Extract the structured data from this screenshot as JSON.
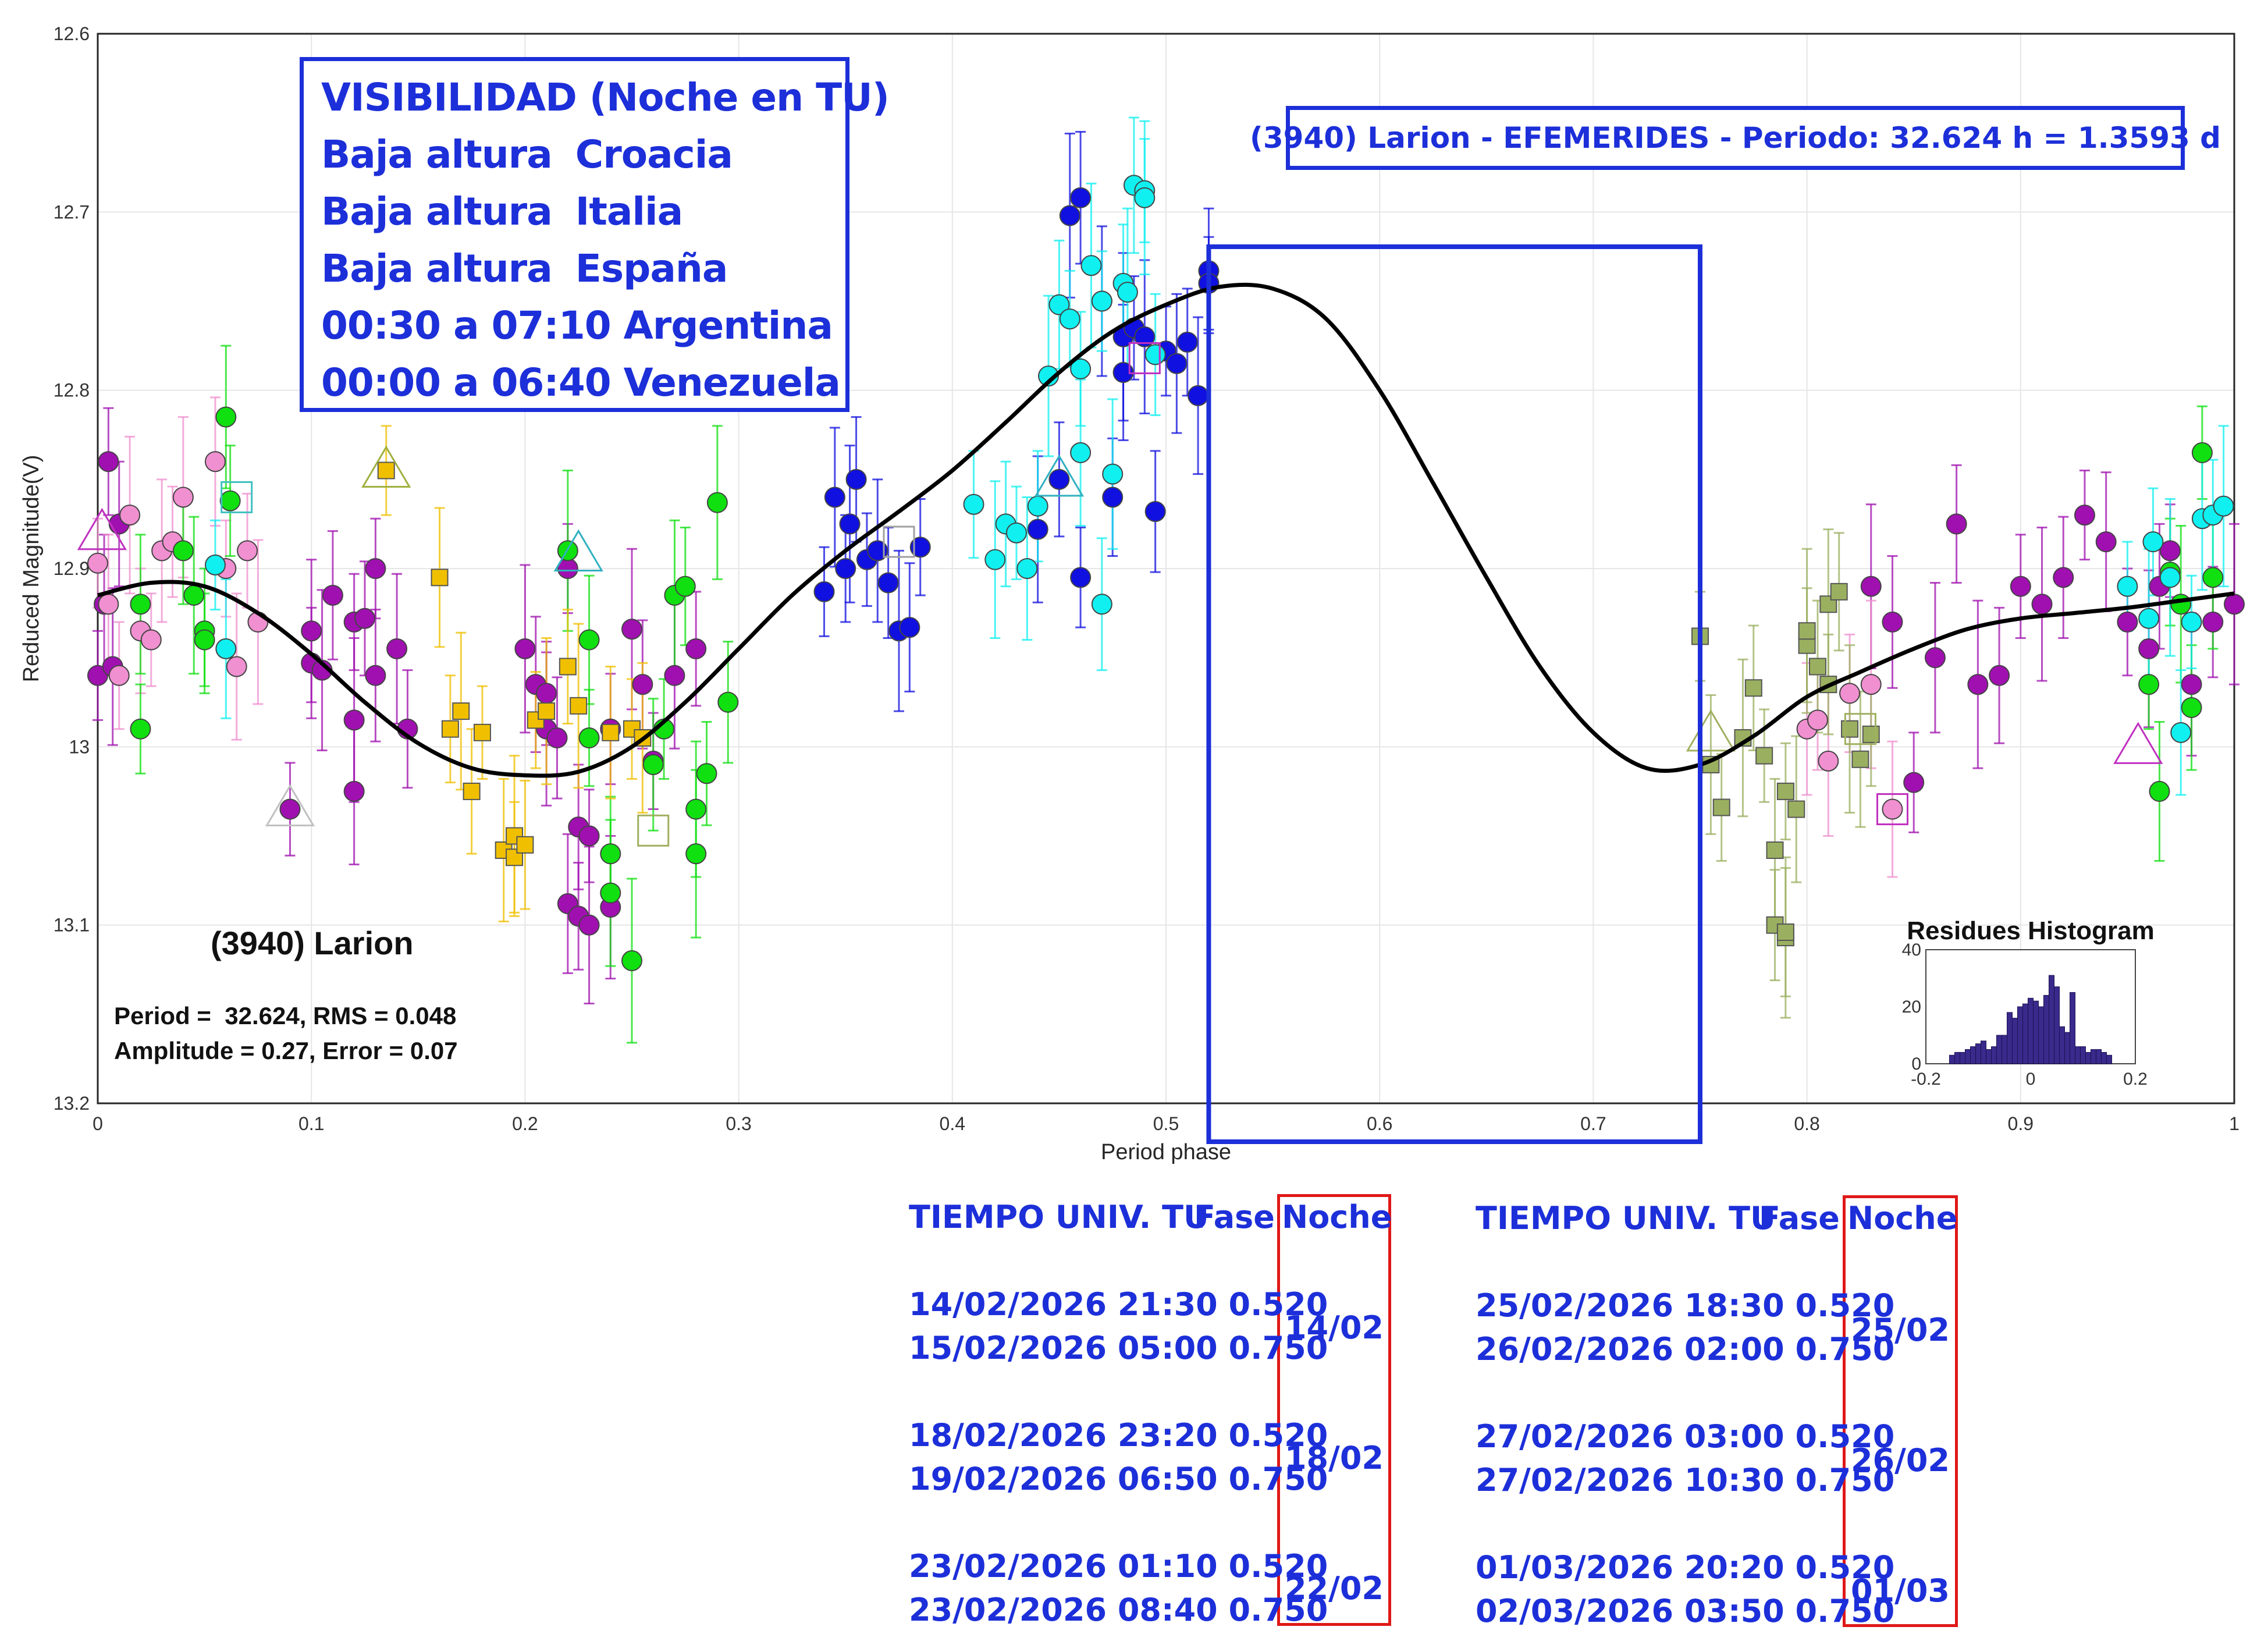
{
  "chart_data": {
    "type": "scatter",
    "xlabel": "Period phase",
    "ylabel": "Reduced Magnitude(V)",
    "xlim": [
      0,
      1
    ],
    "ylim": [
      12.6,
      13.2
    ],
    "y_inverted": true,
    "grid": true,
    "xticks": [
      "0",
      "0.1",
      "0.2",
      "0.3",
      "0.4",
      "0.5",
      "0.6",
      "0.7",
      "0.8",
      "0.9",
      "1"
    ],
    "yticks": [
      "12.6",
      "12.7",
      "12.8",
      "12.9",
      "13",
      "13.1",
      "13.2"
    ],
    "object_label": "(3940) Larion",
    "stats_line1": "Period =  32.624, RMS = 0.048",
    "stats_line2": "Amplitude = 0.27, Error = 0.07",
    "fit_curve": {
      "x": [
        0,
        0.025,
        0.05,
        0.075,
        0.1,
        0.125,
        0.15,
        0.175,
        0.2,
        0.225,
        0.25,
        0.275,
        0.3,
        0.325,
        0.35,
        0.375,
        0.4,
        0.425,
        0.45,
        0.475,
        0.5,
        0.525,
        0.55,
        0.575,
        0.6,
        0.625,
        0.65,
        0.675,
        0.7,
        0.725,
        0.75,
        0.775,
        0.8,
        0.825,
        0.85,
        0.875,
        0.9,
        0.925,
        0.95,
        0.975,
        1
      ],
      "y": [
        12.915,
        12.908,
        12.91,
        12.925,
        12.948,
        12.975,
        12.998,
        13.012,
        13.016,
        13.014,
        13.0,
        12.975,
        12.945,
        12.915,
        12.89,
        12.868,
        12.845,
        12.818,
        12.79,
        12.767,
        12.752,
        12.742,
        12.743,
        12.76,
        12.8,
        12.852,
        12.905,
        12.955,
        12.992,
        13.012,
        13.01,
        12.994,
        12.972,
        12.958,
        12.945,
        12.934,
        12.928,
        12.925,
        12.922,
        12.918,
        12.914
      ]
    },
    "observation_window": {
      "phase_start": 0.52,
      "phase_end": 0.75
    },
    "series": [
      {
        "name": "magenta",
        "color": "#a010b0",
        "marker": "circle",
        "points": [
          [
            0.0,
            12.96
          ],
          [
            0.003,
            12.92
          ],
          [
            0.005,
            12.84
          ],
          [
            0.007,
            12.955
          ],
          [
            0.01,
            12.875
          ],
          [
            0.09,
            13.035
          ],
          [
            0.1,
            12.935
          ],
          [
            0.1,
            12.953
          ],
          [
            0.105,
            12.957
          ],
          [
            0.11,
            12.915
          ],
          [
            0.12,
            12.93
          ],
          [
            0.12,
            13.025
          ],
          [
            0.125,
            12.928
          ],
          [
            0.12,
            12.985
          ],
          [
            0.13,
            12.96
          ],
          [
            0.13,
            12.9
          ],
          [
            0.14,
            12.945
          ],
          [
            0.145,
            12.99
          ],
          [
            0.2,
            12.945
          ],
          [
            0.205,
            12.965
          ],
          [
            0.21,
            12.97
          ],
          [
            0.21,
            12.99
          ],
          [
            0.215,
            12.995
          ],
          [
            0.22,
            12.9
          ],
          [
            0.22,
            13.088
          ],
          [
            0.225,
            13.095
          ],
          [
            0.23,
            13.1
          ],
          [
            0.225,
            13.045
          ],
          [
            0.23,
            13.05
          ],
          [
            0.24,
            13.09
          ],
          [
            0.24,
            12.99
          ],
          [
            0.25,
            12.934
          ],
          [
            0.255,
            12.965
          ],
          [
            0.26,
            13.008
          ],
          [
            0.27,
            12.96
          ],
          [
            0.28,
            12.945
          ],
          [
            0.83,
            12.91
          ],
          [
            0.84,
            12.93
          ],
          [
            0.85,
            13.02
          ],
          [
            0.86,
            12.95
          ],
          [
            0.87,
            12.875
          ],
          [
            0.88,
            12.965
          ],
          [
            0.89,
            12.96
          ],
          [
            0.9,
            12.91
          ],
          [
            0.91,
            12.92
          ],
          [
            0.92,
            12.905
          ],
          [
            0.93,
            12.87
          ],
          [
            0.94,
            12.885
          ],
          [
            0.95,
            12.93
          ],
          [
            0.96,
            12.945
          ],
          [
            0.965,
            12.91
          ],
          [
            0.97,
            12.89
          ],
          [
            0.98,
            12.965
          ],
          [
            0.99,
            12.93
          ],
          [
            1.0,
            12.92
          ]
        ]
      },
      {
        "name": "pink",
        "color": "#f090d0",
        "marker": "circle",
        "points": [
          [
            0.0,
            12.897
          ],
          [
            0.005,
            12.92
          ],
          [
            0.01,
            12.96
          ],
          [
            0.015,
            12.87
          ],
          [
            0.02,
            12.935
          ],
          [
            0.025,
            12.94
          ],
          [
            0.03,
            12.89
          ],
          [
            0.035,
            12.885
          ],
          [
            0.04,
            12.86
          ],
          [
            0.055,
            12.84
          ],
          [
            0.06,
            12.9
          ],
          [
            0.065,
            12.955
          ],
          [
            0.07,
            12.89
          ],
          [
            0.075,
            12.93
          ],
          [
            0.8,
            12.99
          ],
          [
            0.805,
            12.985
          ],
          [
            0.81,
            13.008
          ],
          [
            0.82,
            12.97
          ],
          [
            0.83,
            12.965
          ],
          [
            0.84,
            13.035
          ]
        ]
      },
      {
        "name": "green",
        "color": "#10e010",
        "marker": "circle",
        "points": [
          [
            0.02,
            12.99
          ],
          [
            0.02,
            12.92
          ],
          [
            0.04,
            12.89
          ],
          [
            0.045,
            12.915
          ],
          [
            0.05,
            12.935
          ],
          [
            0.05,
            12.94
          ],
          [
            0.06,
            12.815
          ],
          [
            0.062,
            12.862
          ],
          [
            0.22,
            12.89
          ],
          [
            0.23,
            12.94
          ],
          [
            0.23,
            12.995
          ],
          [
            0.24,
            13.082
          ],
          [
            0.24,
            13.06
          ],
          [
            0.25,
            13.12
          ],
          [
            0.26,
            13.01
          ],
          [
            0.265,
            12.99
          ],
          [
            0.27,
            12.915
          ],
          [
            0.275,
            12.91
          ],
          [
            0.28,
            13.06
          ],
          [
            0.28,
            13.035
          ],
          [
            0.285,
            13.015
          ],
          [
            0.29,
            12.863
          ],
          [
            0.295,
            12.975
          ],
          [
            0.96,
            12.965
          ],
          [
            0.965,
            13.025
          ],
          [
            0.97,
            12.902
          ],
          [
            0.975,
            12.92
          ],
          [
            0.98,
            12.978
          ],
          [
            0.985,
            12.835
          ],
          [
            0.99,
            12.905
          ]
        ]
      },
      {
        "name": "blue",
        "color": "#1010e0",
        "marker": "circle",
        "points": [
          [
            0.34,
            12.913
          ],
          [
            0.345,
            12.86
          ],
          [
            0.35,
            12.9
          ],
          [
            0.352,
            12.875
          ],
          [
            0.355,
            12.85
          ],
          [
            0.36,
            12.895
          ],
          [
            0.365,
            12.89
          ],
          [
            0.37,
            12.908
          ],
          [
            0.375,
            12.935
          ],
          [
            0.38,
            12.933
          ],
          [
            0.385,
            12.888
          ],
          [
            0.44,
            12.878
          ],
          [
            0.45,
            12.85
          ],
          [
            0.455,
            12.702
          ],
          [
            0.46,
            12.692
          ],
          [
            0.46,
            12.905
          ],
          [
            0.47,
            12.75
          ],
          [
            0.475,
            12.86
          ],
          [
            0.48,
            12.77
          ],
          [
            0.48,
            12.79
          ],
          [
            0.485,
            12.765
          ],
          [
            0.49,
            12.77
          ],
          [
            0.495,
            12.868
          ],
          [
            0.5,
            12.778
          ],
          [
            0.505,
            12.785
          ],
          [
            0.51,
            12.773
          ],
          [
            0.515,
            12.803
          ],
          [
            0.52,
            12.733
          ],
          [
            0.52,
            12.74
          ]
        ]
      },
      {
        "name": "cyan",
        "color": "#10f0f0",
        "marker": "circle",
        "points": [
          [
            0.055,
            12.898
          ],
          [
            0.06,
            12.945
          ],
          [
            0.41,
            12.864
          ],
          [
            0.42,
            12.895
          ],
          [
            0.425,
            12.875
          ],
          [
            0.43,
            12.88
          ],
          [
            0.435,
            12.9
          ],
          [
            0.44,
            12.865
          ],
          [
            0.445,
            12.792
          ],
          [
            0.45,
            12.752
          ],
          [
            0.455,
            12.76
          ],
          [
            0.46,
            12.835
          ],
          [
            0.46,
            12.788
          ],
          [
            0.465,
            12.73
          ],
          [
            0.47,
            12.92
          ],
          [
            0.47,
            12.75
          ],
          [
            0.475,
            12.847
          ],
          [
            0.48,
            12.74
          ],
          [
            0.482,
            12.745
          ],
          [
            0.485,
            12.685
          ],
          [
            0.49,
            12.688
          ],
          [
            0.49,
            12.692
          ],
          [
            0.495,
            12.78
          ],
          [
            0.95,
            12.91
          ],
          [
            0.96,
            12.928
          ],
          [
            0.962,
            12.885
          ],
          [
            0.97,
            12.905
          ],
          [
            0.975,
            12.992
          ],
          [
            0.98,
            12.93
          ],
          [
            0.985,
            12.872
          ],
          [
            0.99,
            12.87
          ],
          [
            0.995,
            12.865
          ]
        ]
      },
      {
        "name": "yellow",
        "color": "#f0c000",
        "marker": "square",
        "points": [
          [
            0.135,
            12.845
          ],
          [
            0.16,
            12.905
          ],
          [
            0.165,
            12.99
          ],
          [
            0.17,
            12.98
          ],
          [
            0.175,
            13.025
          ],
          [
            0.18,
            12.992
          ],
          [
            0.19,
            13.058
          ],
          [
            0.195,
            13.062
          ],
          [
            0.195,
            13.05
          ],
          [
            0.2,
            13.055
          ],
          [
            0.205,
            12.985
          ],
          [
            0.21,
            12.98
          ],
          [
            0.22,
            12.955
          ],
          [
            0.225,
            12.977
          ],
          [
            0.24,
            12.992
          ],
          [
            0.25,
            12.99
          ],
          [
            0.255,
            12.995
          ]
        ]
      },
      {
        "name": "olive",
        "color": "#9ab060",
        "marker": "square",
        "points": [
          [
            0.75,
            12.938
          ],
          [
            0.755,
            13.01
          ],
          [
            0.76,
            13.034
          ],
          [
            0.77,
            12.995
          ],
          [
            0.775,
            12.967
          ],
          [
            0.78,
            13.005
          ],
          [
            0.785,
            13.058
          ],
          [
            0.785,
            13.1
          ],
          [
            0.79,
            13.107
          ],
          [
            0.79,
            13.104
          ],
          [
            0.79,
            13.025
          ],
          [
            0.795,
            13.035
          ],
          [
            0.8,
            12.943
          ],
          [
            0.8,
            12.935
          ],
          [
            0.805,
            12.955
          ],
          [
            0.81,
            12.965
          ],
          [
            0.81,
            12.92
          ],
          [
            0.815,
            12.913
          ],
          [
            0.82,
            12.99
          ],
          [
            0.825,
            13.007
          ],
          [
            0.83,
            12.993
          ]
        ]
      }
    ],
    "open_markers": [
      {
        "shape": "triangle",
        "color": "#c030c0",
        "x": 0.002,
        "y": 12.88
      },
      {
        "shape": "triangle",
        "color": "#c0c0c0",
        "x": 0.09,
        "y": 13.035
      },
      {
        "shape": "triangle",
        "color": "#a0b040",
        "x": 0.135,
        "y": 12.845
      },
      {
        "shape": "triangle",
        "color": "#30b0c0",
        "x": 0.225,
        "y": 12.892
      },
      {
        "shape": "triangle",
        "color": "#a0b060",
        "x": 0.755,
        "y": 12.993
      },
      {
        "shape": "triangle",
        "color": "#c030c0",
        "x": 0.955,
        "y": 13.0
      },
      {
        "shape": "triangle",
        "color": "#30b0c0",
        "x": 0.45,
        "y": 12.85
      },
      {
        "shape": "square",
        "color": "#40c0c0",
        "x": 0.065,
        "y": 12.86
      },
      {
        "shape": "square",
        "color": "#a0b060",
        "x": 0.26,
        "y": 13.047
      },
      {
        "shape": "square",
        "color": "#c030c0",
        "x": 0.49,
        "y": 12.782
      },
      {
        "shape": "square",
        "color": "#a0a0a0",
        "x": 0.375,
        "y": 12.885
      },
      {
        "shape": "square",
        "color": "#a0b060",
        "x": 0.825,
        "y": 12.99
      },
      {
        "shape": "square",
        "color": "#c030c0",
        "x": 0.84,
        "y": 13.035
      }
    ],
    "inset_histogram": {
      "title": "Residues Histogram",
      "xlim": [
        -0.2,
        0.2
      ],
      "ylim": [
        0,
        40
      ],
      "xticks": [
        "-0.2",
        "0",
        "0.2"
      ],
      "yticks": [
        "0",
        "20",
        "40"
      ],
      "bin_centers": [
        -0.15,
        -0.14,
        -0.13,
        -0.12,
        -0.11,
        -0.1,
        -0.09,
        -0.08,
        -0.07,
        -0.06,
        -0.05,
        -0.04,
        -0.03,
        -0.02,
        -0.01,
        0.0,
        0.01,
        0.02,
        0.03,
        0.04,
        0.05,
        0.06,
        0.07,
        0.08,
        0.09,
        0.1,
        0.11,
        0.12,
        0.13,
        0.14,
        0.15
      ],
      "counts": [
        3,
        4,
        4,
        5,
        6,
        7,
        8,
        5,
        6,
        10,
        10,
        18,
        16,
        20,
        21,
        23,
        22,
        20,
        24,
        31,
        27,
        13,
        11,
        25,
        6,
        6,
        4,
        5,
        5,
        4,
        3
      ]
    }
  },
  "visibility_box": {
    "title": "VISIBILIDAD (Noche en TU)",
    "rows": [
      {
        "label": "Baja altura",
        "place": "Croacia"
      },
      {
        "label": "Baja altura",
        "place": "Italia"
      },
      {
        "label": "Baja altura",
        "place": "España"
      }
    ],
    "times": [
      "00:30 a 07:10 Argentina",
      "00:00 a 06:40 Venezuela"
    ]
  },
  "ephemeris_title": "(3940) Larion - EFEMERIDES - Periodo: 32.624 h = 1.3593 d",
  "table": {
    "head_time": "TIEMPO UNIV. TU",
    "head_phase": "Fase",
    "head_night": "Noche",
    "left": [
      {
        "row1": "14/02/2026  21:30 0.520",
        "row2": "15/02/2026  05:00 0.750",
        "night": "14/02"
      },
      {
        "row1": "18/02/2026  23:20 0.520",
        "row2": "19/02/2026  06:50 0.750",
        "night": "18/02"
      },
      {
        "row1": "23/02/2026  01:10 0.520",
        "row2": "23/02/2026  08:40 0.750",
        "night": "22/02"
      }
    ],
    "right": [
      {
        "row1": "25/02/2026  18:30 0.520",
        "row2": "26/02/2026  02:00 0.750",
        "night": "25/02"
      },
      {
        "row1": "27/02/2026  03:00 0.520",
        "row2": "27/02/2026  10:30 0.750",
        "night": "26/02"
      },
      {
        "row1": "01/03/2026  20:20 0.520",
        "row2": "02/03/2026  03:50 0.750",
        "night": "01/03"
      }
    ]
  },
  "colors": {
    "accent": "#1c2fd9",
    "night_box": "#e01818",
    "fit": "#000000"
  }
}
